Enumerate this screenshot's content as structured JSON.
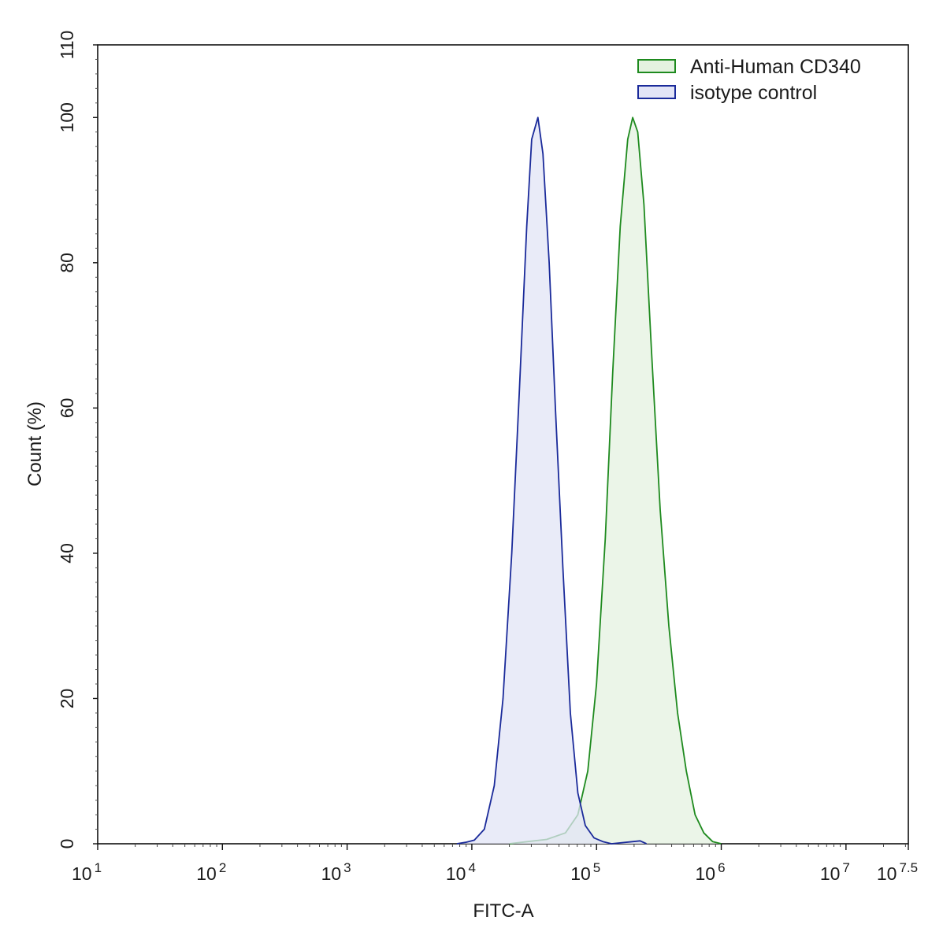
{
  "chart_data": {
    "type": "area",
    "title": "",
    "xlabel": "FITC-A",
    "ylabel": "Count (%)",
    "x_scale": "log10",
    "xlim_log10": [
      1,
      7.5
    ],
    "ylim": [
      0,
      110
    ],
    "grid": false,
    "legend_position": "top-right",
    "x_ticks": [
      {
        "log10": 1,
        "base": "10",
        "exp": "1"
      },
      {
        "log10": 2,
        "base": "10",
        "exp": "2"
      },
      {
        "log10": 3,
        "base": "10",
        "exp": "3"
      },
      {
        "log10": 4,
        "base": "10",
        "exp": "4"
      },
      {
        "log10": 5,
        "base": "10",
        "exp": "5"
      },
      {
        "log10": 6,
        "base": "10",
        "exp": "6"
      },
      {
        "log10": 7,
        "base": "10",
        "exp": "7"
      },
      {
        "log10": 7.5,
        "base": "10",
        "exp": "7.5"
      }
    ],
    "y_ticks": [
      "0",
      "20",
      "40",
      "60",
      "80",
      "100",
      "110"
    ],
    "y_tick_values": [
      0,
      20,
      40,
      60,
      80,
      100,
      110
    ],
    "series": [
      {
        "name": "Anti-Human CD340",
        "stroke": "#1e8a1e",
        "fill": "#e4f2e0",
        "points_log10_x": [
          [
            4.3,
            0
          ],
          [
            4.45,
            0.3
          ],
          [
            4.6,
            0.6
          ],
          [
            4.75,
            1.5
          ],
          [
            4.85,
            4
          ],
          [
            4.93,
            10
          ],
          [
            5.0,
            22
          ],
          [
            5.07,
            42
          ],
          [
            5.13,
            65
          ],
          [
            5.19,
            85
          ],
          [
            5.25,
            97
          ],
          [
            5.29,
            100
          ],
          [
            5.33,
            98
          ],
          [
            5.38,
            88
          ],
          [
            5.44,
            68
          ],
          [
            5.51,
            46
          ],
          [
            5.58,
            30
          ],
          [
            5.65,
            18
          ],
          [
            5.72,
            10
          ],
          [
            5.79,
            4
          ],
          [
            5.86,
            1.5
          ],
          [
            5.93,
            0.3
          ],
          [
            6.0,
            0
          ]
        ]
      },
      {
        "name": "isotype control",
        "stroke": "#1a2a9a",
        "fill": "#e2e4f6",
        "points_log10_x": [
          [
            3.88,
            0
          ],
          [
            3.95,
            0.2
          ],
          [
            4.02,
            0.5
          ],
          [
            4.1,
            2
          ],
          [
            4.18,
            8
          ],
          [
            4.25,
            20
          ],
          [
            4.32,
            40
          ],
          [
            4.38,
            62
          ],
          [
            4.44,
            85
          ],
          [
            4.48,
            97
          ],
          [
            4.53,
            100
          ],
          [
            4.57,
            95
          ],
          [
            4.62,
            80
          ],
          [
            4.67,
            60
          ],
          [
            4.73,
            38
          ],
          [
            4.79,
            18
          ],
          [
            4.85,
            7
          ],
          [
            4.91,
            2.5
          ],
          [
            4.98,
            0.8
          ],
          [
            5.05,
            0.3
          ],
          [
            5.12,
            0
          ],
          [
            5.35,
            0.4
          ],
          [
            5.4,
            0
          ]
        ]
      }
    ]
  }
}
